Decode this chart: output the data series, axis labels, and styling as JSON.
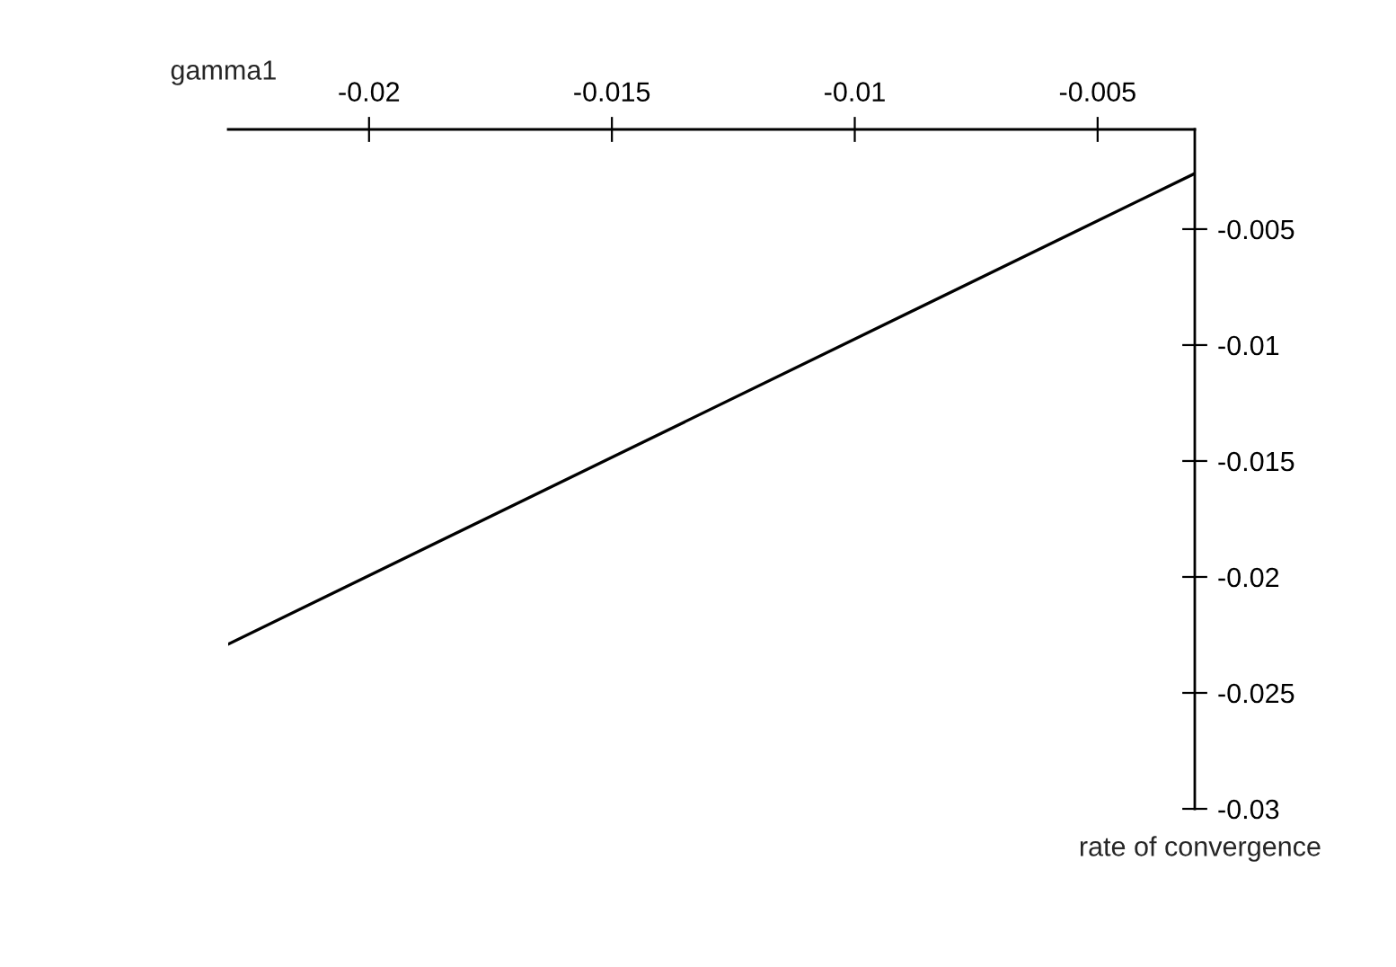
{
  "chart_data": {
    "type": "line",
    "xlabel": "gamma1",
    "ylabel": "rate of convergence",
    "x": [
      -0.0229,
      -0.003
    ],
    "series": [
      {
        "color": "#000000",
        "values": [
          -0.0229,
          -0.0026
        ]
      }
    ],
    "xlim": [
      -0.0229,
      -0.003
    ],
    "ylim": [
      -0.03,
      -0.0007
    ],
    "xticks": [
      -0.02,
      -0.015,
      -0.01,
      -0.005
    ],
    "yticks": [
      -0.005,
      -0.01,
      -0.015,
      -0.02,
      -0.025,
      -0.03
    ],
    "grid": false,
    "legend": false,
    "marker": "none",
    "line_style": "solid"
  }
}
